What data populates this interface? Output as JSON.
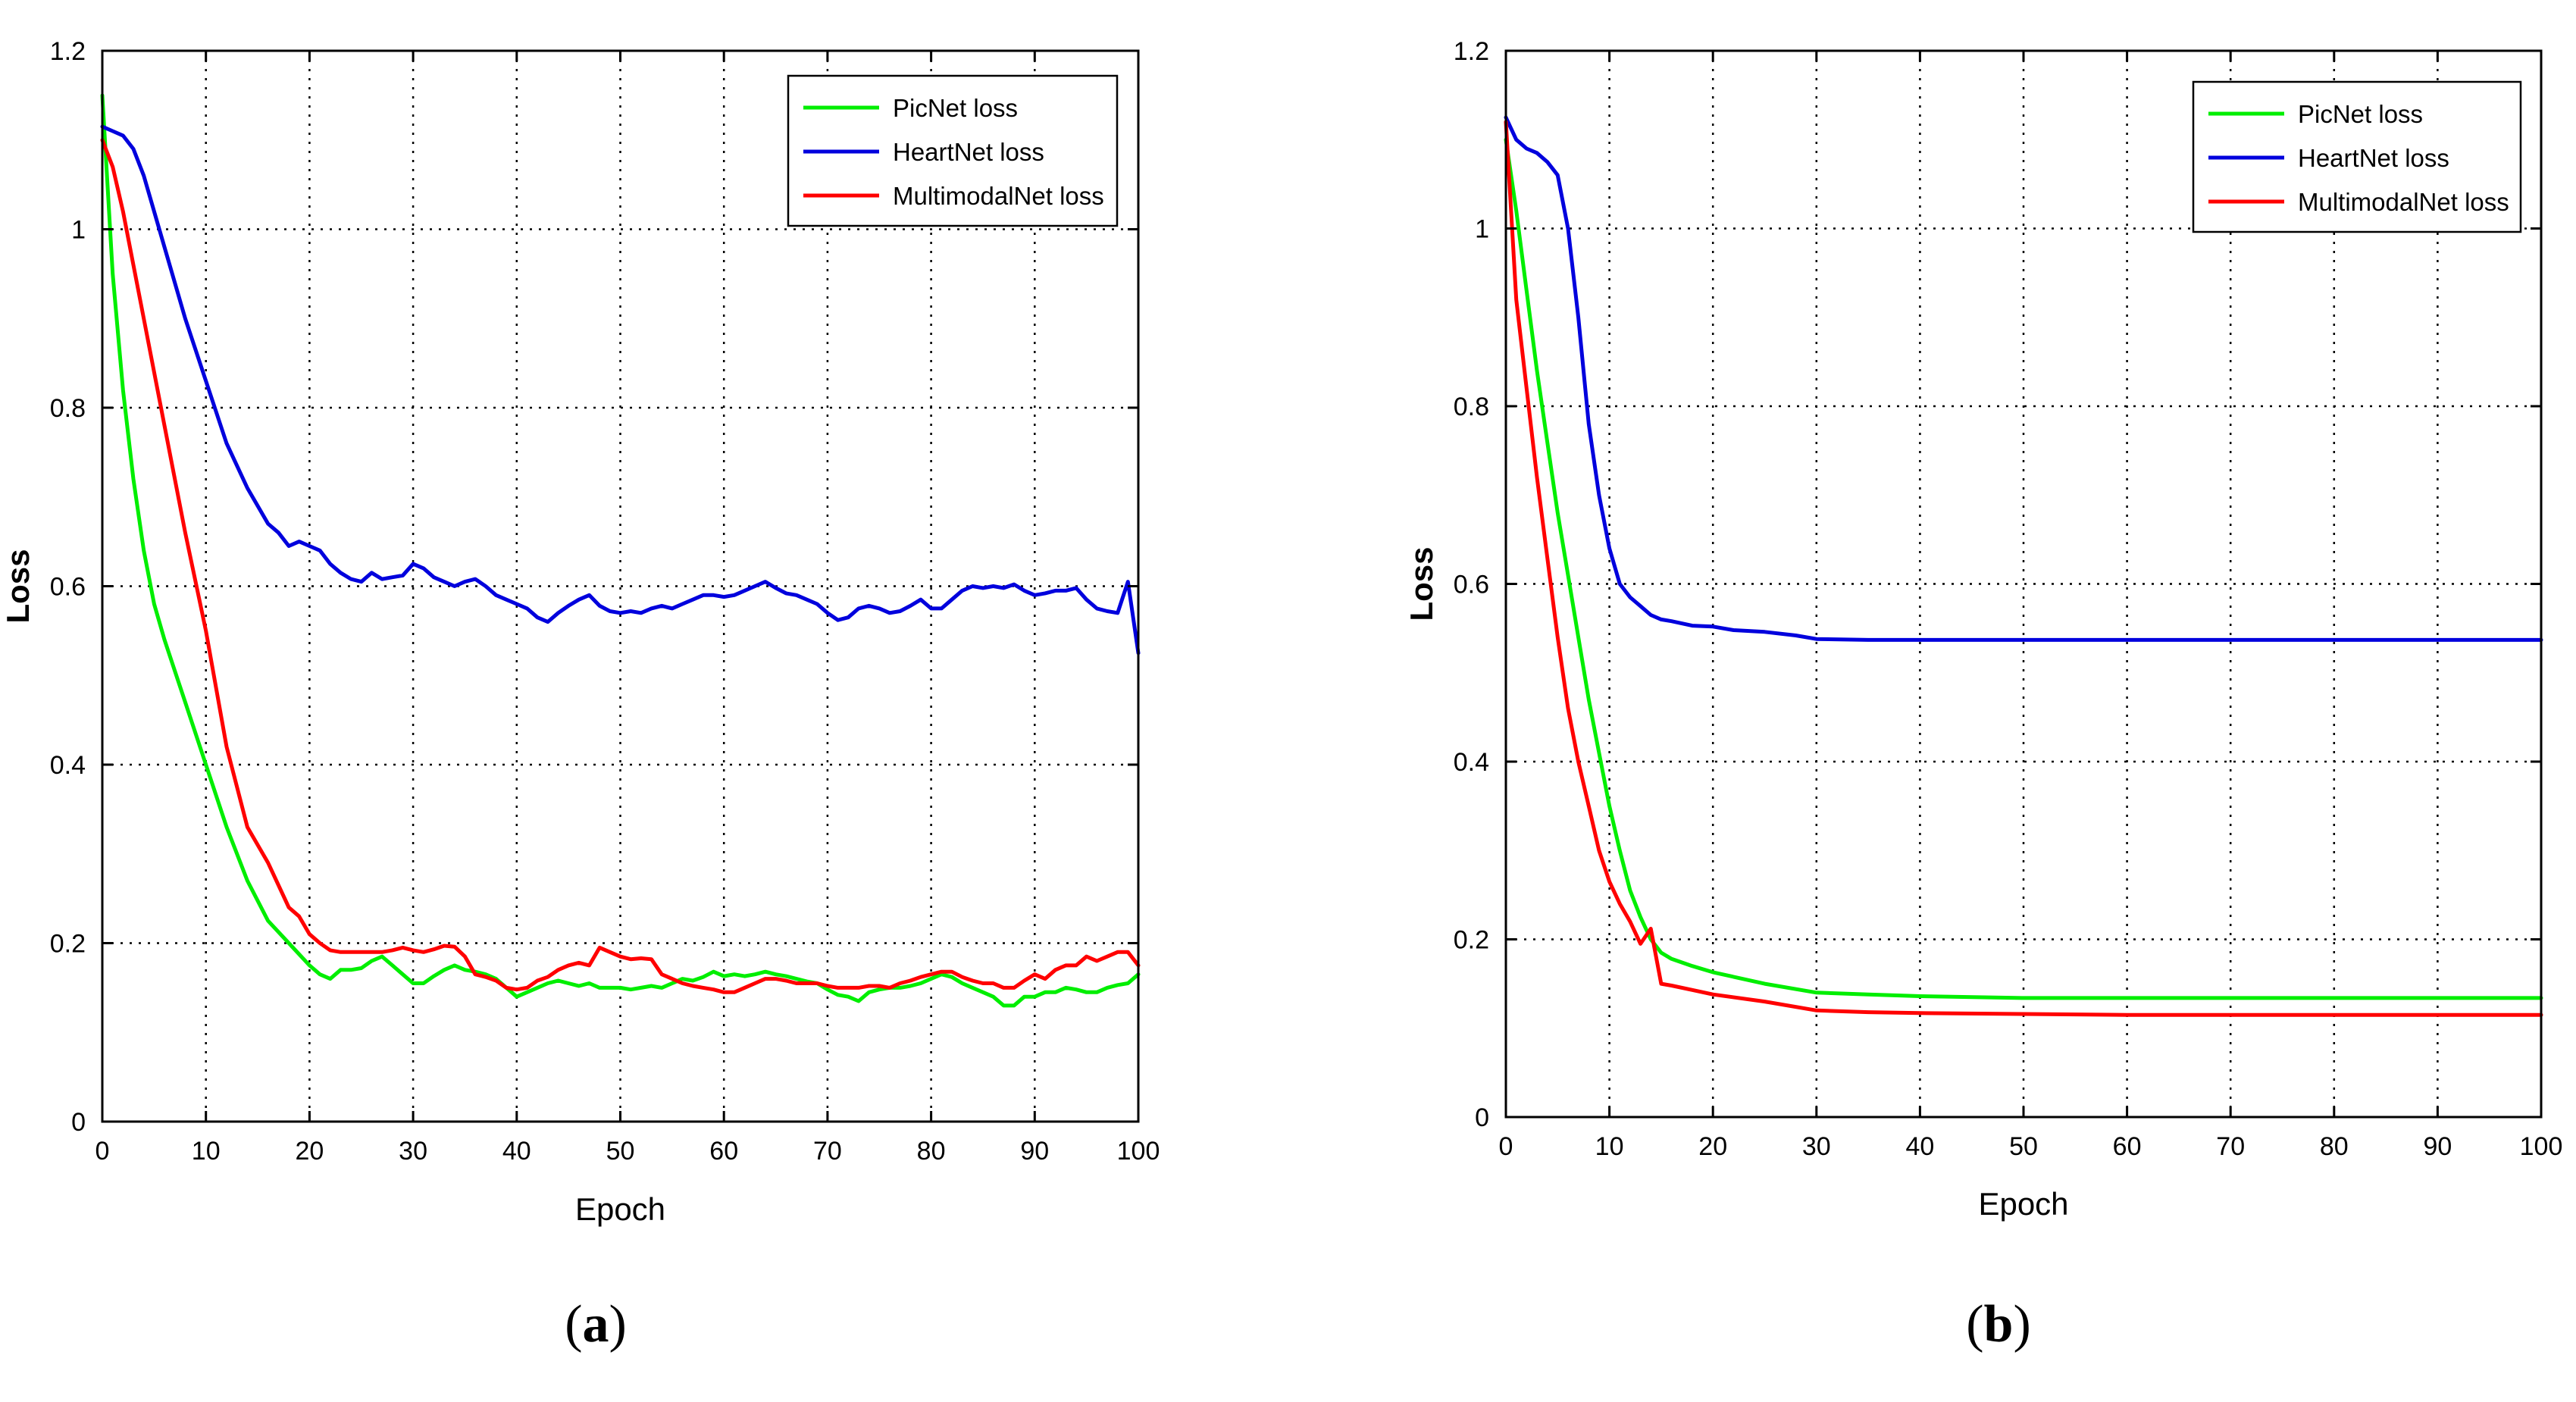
{
  "chart_data": [
    {
      "type": "line",
      "caption": {
        "open": "(",
        "letter": "a",
        "close": ")"
      },
      "xlabel": "Epoch",
      "ylabel": "Loss",
      "xlim": [
        0,
        100
      ],
      "ylim": [
        0,
        1.2
      ],
      "xticks": [
        "0",
        "10",
        "20",
        "30",
        "40",
        "50",
        "60",
        "70",
        "80",
        "90",
        "100"
      ],
      "yticks": [
        "0",
        "0.2",
        "0.4",
        "0.6",
        "0.8",
        "1",
        "1.2"
      ],
      "grid": true,
      "legend_position": "top-right",
      "series": [
        {
          "name": "PicNet loss",
          "color": "#00ee00",
          "x": [
            0,
            1,
            2,
            3,
            4,
            5,
            6,
            8,
            10,
            12,
            14,
            16,
            18,
            20,
            21,
            22,
            23,
            24,
            25,
            26,
            27,
            28,
            29,
            30,
            31,
            32,
            33,
            34,
            35,
            36,
            37,
            38,
            39,
            40,
            41,
            42,
            43,
            44,
            45,
            46,
            47,
            48,
            49,
            50,
            51,
            52,
            53,
            54,
            55,
            56,
            57,
            58,
            59,
            60,
            61,
            62,
            63,
            64,
            65,
            66,
            67,
            68,
            69,
            70,
            71,
            72,
            73,
            74,
            75,
            76,
            77,
            78,
            79,
            80,
            81,
            82,
            83,
            84,
            85,
            86,
            87,
            88,
            89,
            90,
            91,
            92,
            93,
            94,
            95,
            96,
            97,
            98,
            99,
            100
          ],
          "values": [
            1.15,
            0.95,
            0.82,
            0.72,
            0.64,
            0.58,
            0.54,
            0.47,
            0.4,
            0.33,
            0.27,
            0.225,
            0.2,
            0.175,
            0.165,
            0.16,
            0.17,
            0.17,
            0.172,
            0.18,
            0.185,
            0.175,
            0.165,
            0.155,
            0.155,
            0.163,
            0.17,
            0.175,
            0.17,
            0.168,
            0.165,
            0.16,
            0.15,
            0.14,
            0.145,
            0.15,
            0.155,
            0.158,
            0.155,
            0.152,
            0.155,
            0.15,
            0.15,
            0.15,
            0.148,
            0.15,
            0.152,
            0.15,
            0.155,
            0.16,
            0.158,
            0.162,
            0.168,
            0.163,
            0.165,
            0.163,
            0.165,
            0.168,
            0.165,
            0.163,
            0.16,
            0.157,
            0.155,
            0.148,
            0.142,
            0.14,
            0.135,
            0.145,
            0.148,
            0.15,
            0.15,
            0.152,
            0.155,
            0.16,
            0.165,
            0.162,
            0.155,
            0.15,
            0.145,
            0.14,
            0.13,
            0.13,
            0.14,
            0.14,
            0.145,
            0.145,
            0.15,
            0.148,
            0.145,
            0.145,
            0.15,
            0.153,
            0.155,
            0.165
          ]
        },
        {
          "name": "HeartNet loss",
          "color": "#0000dd",
          "x": [
            0,
            1,
            2,
            3,
            4,
            6,
            8,
            10,
            12,
            14,
            16,
            17,
            18,
            19,
            20,
            21,
            22,
            23,
            24,
            25,
            26,
            27,
            28,
            29,
            30,
            31,
            32,
            33,
            34,
            35,
            36,
            37,
            38,
            39,
            40,
            41,
            42,
            43,
            44,
            45,
            46,
            47,
            48,
            49,
            50,
            51,
            52,
            53,
            54,
            55,
            56,
            57,
            58,
            59,
            60,
            61,
            62,
            63,
            64,
            65,
            66,
            67,
            68,
            69,
            70,
            71,
            72,
            73,
            74,
            75,
            76,
            77,
            78,
            79,
            80,
            81,
            82,
            83,
            84,
            85,
            86,
            87,
            88,
            89,
            90,
            91,
            92,
            93,
            94,
            95,
            96,
            97,
            98,
            99,
            100
          ],
          "values": [
            1.115,
            1.11,
            1.105,
            1.09,
            1.06,
            0.98,
            0.9,
            0.83,
            0.76,
            0.71,
            0.67,
            0.66,
            0.645,
            0.65,
            0.645,
            0.64,
            0.625,
            0.615,
            0.608,
            0.605,
            0.615,
            0.608,
            0.61,
            0.612,
            0.625,
            0.62,
            0.61,
            0.605,
            0.6,
            0.605,
            0.608,
            0.6,
            0.59,
            0.585,
            0.58,
            0.575,
            0.565,
            0.56,
            0.57,
            0.578,
            0.585,
            0.59,
            0.578,
            0.572,
            0.57,
            0.572,
            0.57,
            0.575,
            0.578,
            0.575,
            0.58,
            0.585,
            0.59,
            0.59,
            0.588,
            0.59,
            0.595,
            0.6,
            0.605,
            0.598,
            0.592,
            0.59,
            0.585,
            0.58,
            0.57,
            0.562,
            0.565,
            0.575,
            0.578,
            0.575,
            0.57,
            0.572,
            0.578,
            0.585,
            0.575,
            0.575,
            0.585,
            0.595,
            0.6,
            0.598,
            0.6,
            0.598,
            0.602,
            0.595,
            0.59,
            0.592,
            0.595,
            0.595,
            0.598,
            0.585,
            0.575,
            0.572,
            0.57,
            0.605,
            0.525
          ]
        },
        {
          "name": "MultimodalNet loss",
          "color": "#ff0000",
          "x": [
            0,
            1,
            2,
            3,
            4,
            6,
            8,
            10,
            12,
            14,
            16,
            18,
            19,
            20,
            21,
            22,
            23,
            24,
            25,
            26,
            27,
            28,
            29,
            30,
            31,
            32,
            33,
            34,
            35,
            36,
            37,
            38,
            39,
            40,
            41,
            42,
            43,
            44,
            45,
            46,
            47,
            48,
            49,
            50,
            51,
            52,
            53,
            54,
            55,
            56,
            57,
            58,
            59,
            60,
            61,
            62,
            63,
            64,
            65,
            66,
            67,
            68,
            69,
            70,
            71,
            72,
            73,
            74,
            75,
            76,
            77,
            78,
            79,
            80,
            81,
            82,
            83,
            84,
            85,
            86,
            87,
            88,
            89,
            90,
            91,
            92,
            93,
            94,
            95,
            96,
            97,
            98,
            99,
            100
          ],
          "values": [
            1.1,
            1.07,
            1.02,
            0.96,
            0.9,
            0.78,
            0.66,
            0.55,
            0.42,
            0.33,
            0.29,
            0.24,
            0.23,
            0.21,
            0.2,
            0.192,
            0.19,
            0.19,
            0.19,
            0.19,
            0.19,
            0.192,
            0.195,
            0.192,
            0.19,
            0.193,
            0.197,
            0.196,
            0.185,
            0.165,
            0.162,
            0.158,
            0.15,
            0.148,
            0.15,
            0.158,
            0.162,
            0.17,
            0.175,
            0.178,
            0.175,
            0.195,
            0.19,
            0.185,
            0.182,
            0.183,
            0.182,
            0.165,
            0.16,
            0.155,
            0.152,
            0.15,
            0.148,
            0.145,
            0.145,
            0.15,
            0.155,
            0.16,
            0.16,
            0.158,
            0.155,
            0.155,
            0.155,
            0.152,
            0.15,
            0.15,
            0.15,
            0.152,
            0.152,
            0.15,
            0.155,
            0.158,
            0.162,
            0.165,
            0.168,
            0.168,
            0.162,
            0.158,
            0.155,
            0.155,
            0.15,
            0.15,
            0.158,
            0.165,
            0.16,
            0.17,
            0.175,
            0.175,
            0.185,
            0.18,
            0.185,
            0.19,
            0.19,
            0.175
          ]
        }
      ]
    },
    {
      "type": "line",
      "caption": {
        "open": "(",
        "letter": "b",
        "close": ")"
      },
      "xlabel": "Epoch",
      "ylabel": "Loss",
      "xlim": [
        0,
        100
      ],
      "ylim": [
        0,
        1.2
      ],
      "xticks": [
        "0",
        "10",
        "20",
        "30",
        "40",
        "50",
        "60",
        "70",
        "80",
        "90",
        "100"
      ],
      "yticks": [
        "0",
        "0.2",
        "0.4",
        "0.6",
        "0.8",
        "1",
        "1.2"
      ],
      "grid": true,
      "legend_position": "top-right",
      "series": [
        {
          "name": "PicNet loss",
          "color": "#00ee00",
          "x": [
            0,
            1,
            2,
            3,
            4,
            5,
            6,
            7,
            8,
            9,
            10,
            11,
            12,
            13,
            14,
            15,
            16,
            18,
            20,
            25,
            30,
            35,
            40,
            50,
            60,
            70,
            80,
            90,
            100
          ],
          "values": [
            1.1,
            1.02,
            0.93,
            0.84,
            0.76,
            0.68,
            0.61,
            0.54,
            0.47,
            0.41,
            0.35,
            0.3,
            0.255,
            0.225,
            0.2,
            0.185,
            0.178,
            0.17,
            0.163,
            0.15,
            0.14,
            0.138,
            0.136,
            0.134,
            0.134,
            0.134,
            0.134,
            0.134,
            0.134
          ]
        },
        {
          "name": "HeartNet loss",
          "color": "#0000dd",
          "x": [
            0,
            1,
            2,
            3,
            4,
            5,
            6,
            7,
            8,
            9,
            10,
            11,
            12,
            13,
            14,
            15,
            16,
            18,
            20,
            22,
            25,
            28,
            30,
            35,
            40,
            50,
            60,
            70,
            80,
            90,
            100
          ],
          "values": [
            1.125,
            1.1,
            1.09,
            1.085,
            1.075,
            1.06,
            1.0,
            0.9,
            0.78,
            0.7,
            0.64,
            0.6,
            0.585,
            0.575,
            0.565,
            0.56,
            0.558,
            0.553,
            0.552,
            0.548,
            0.546,
            0.542,
            0.538,
            0.537,
            0.537,
            0.537,
            0.537,
            0.537,
            0.537,
            0.537,
            0.537
          ]
        },
        {
          "name": "MultimodalNet loss",
          "color": "#ff0000",
          "x": [
            0,
            1,
            2,
            3,
            4,
            5,
            6,
            7,
            8,
            9,
            10,
            11,
            12,
            13,
            14,
            15,
            16,
            18,
            20,
            25,
            30,
            35,
            40,
            50,
            60,
            70,
            80,
            90,
            100
          ],
          "values": [
            1.12,
            0.92,
            0.82,
            0.72,
            0.63,
            0.54,
            0.46,
            0.4,
            0.35,
            0.3,
            0.265,
            0.24,
            0.22,
            0.195,
            0.212,
            0.15,
            0.148,
            0.143,
            0.138,
            0.13,
            0.12,
            0.118,
            0.117,
            0.116,
            0.115,
            0.115,
            0.115,
            0.115,
            0.115
          ]
        }
      ]
    }
  ]
}
